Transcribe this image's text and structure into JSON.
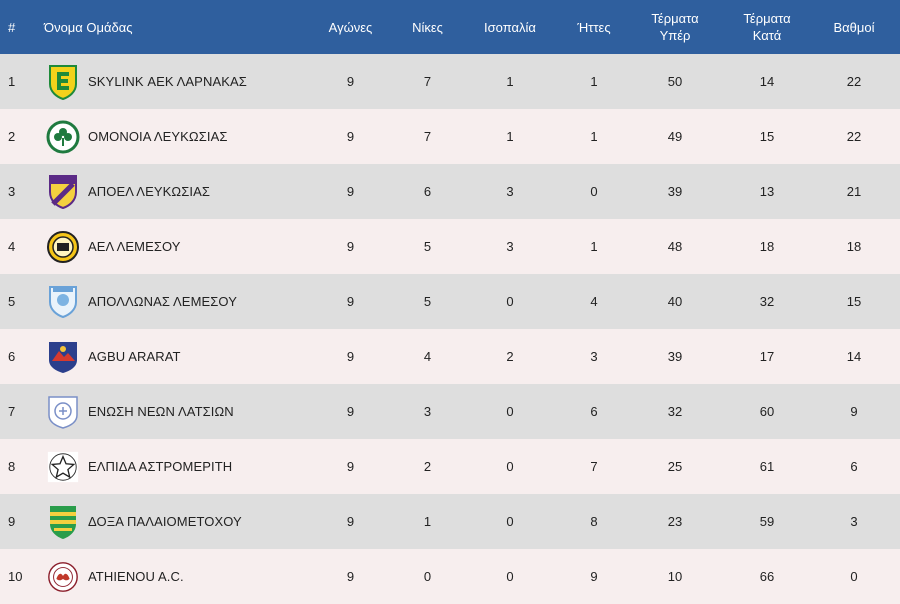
{
  "table": {
    "headers": {
      "pos": "#",
      "team": "Όνομα Ομάδας",
      "played": "Αγώνες",
      "wins": "Νίκες",
      "draws": "Ισοπαλία",
      "losses": "Ήττες",
      "gf_line1": "Τέρματα",
      "gf_line2": "Υπέρ",
      "ga_line1": "Τέρματα",
      "ga_line2": "Κατά",
      "points": "Βαθμοί"
    },
    "colors": {
      "header_bg": "#2f5f9e",
      "row_odd": "#dedede",
      "row_even": "#f7eeee"
    },
    "rows": [
      {
        "pos": "1",
        "team": "SKYLINK ΑΕΚ ΛΑΡΝΑΚΑΣ",
        "badge": "aek-larnaca-crest-icon",
        "played": "9",
        "wins": "7",
        "draws": "1",
        "losses": "1",
        "gf": "50",
        "ga": "14",
        "points": "22"
      },
      {
        "pos": "2",
        "team": "ΟΜΟΝΟΙΑ ΛΕΥΚΩΣΙΑΣ",
        "badge": "omonoia-clover-crest-icon",
        "played": "9",
        "wins": "7",
        "draws": "1",
        "losses": "1",
        "gf": "49",
        "ga": "15",
        "points": "22"
      },
      {
        "pos": "3",
        "team": "ΑΠΟΕΛ ΛΕΥΚΩΣΙΑΣ",
        "badge": "apoel-shield-crest-icon",
        "played": "9",
        "wins": "6",
        "draws": "3",
        "losses": "0",
        "gf": "39",
        "ga": "13",
        "points": "21"
      },
      {
        "pos": "4",
        "team": "ΑΕΛ ΛΕΜΕΣΟΥ",
        "badge": "ael-crest-icon",
        "played": "9",
        "wins": "5",
        "draws": "3",
        "losses": "1",
        "gf": "48",
        "ga": "18",
        "points": "18"
      },
      {
        "pos": "5",
        "team": "ΑΠΟΛΛΩΝΑΣ ΛΕΜΕΣΟΥ",
        "badge": "apollon-crest-icon",
        "played": "9",
        "wins": "5",
        "draws": "0",
        "losses": "4",
        "gf": "40",
        "ga": "32",
        "points": "15"
      },
      {
        "pos": "6",
        "team": "AGBU ARARAT",
        "badge": "agbu-ararat-crest-icon",
        "played": "9",
        "wins": "4",
        "draws": "2",
        "losses": "3",
        "gf": "39",
        "ga": "17",
        "points": "14"
      },
      {
        "pos": "7",
        "team": "ΕΝΩΣΗ ΝΕΩΝ ΛΑΤΣΙΩΝ",
        "badge": "enosi-neon-latsion-crest-icon",
        "played": "9",
        "wins": "3",
        "draws": "0",
        "losses": "6",
        "gf": "32",
        "ga": "60",
        "points": "9"
      },
      {
        "pos": "8",
        "team": "ΕΛΠΙΔΑ ΑΣΤΡΟΜΕΡΙΤΗ",
        "badge": "elpida-star-crest-icon",
        "played": "9",
        "wins": "2",
        "draws": "0",
        "losses": "7",
        "gf": "25",
        "ga": "61",
        "points": "6"
      },
      {
        "pos": "9",
        "team": "ΔΟΞΑ ΠΑΛΑΙΟΜΕΤΟΧΟΥ",
        "badge": "doxa-crest-icon",
        "played": "9",
        "wins": "1",
        "draws": "0",
        "losses": "8",
        "gf": "23",
        "ga": "59",
        "points": "3"
      },
      {
        "pos": "10",
        "team": "ATHIENOU A.C.",
        "badge": "athienou-crest-icon",
        "played": "9",
        "wins": "0",
        "draws": "0",
        "losses": "9",
        "gf": "10",
        "ga": "66",
        "points": "0"
      }
    ]
  }
}
